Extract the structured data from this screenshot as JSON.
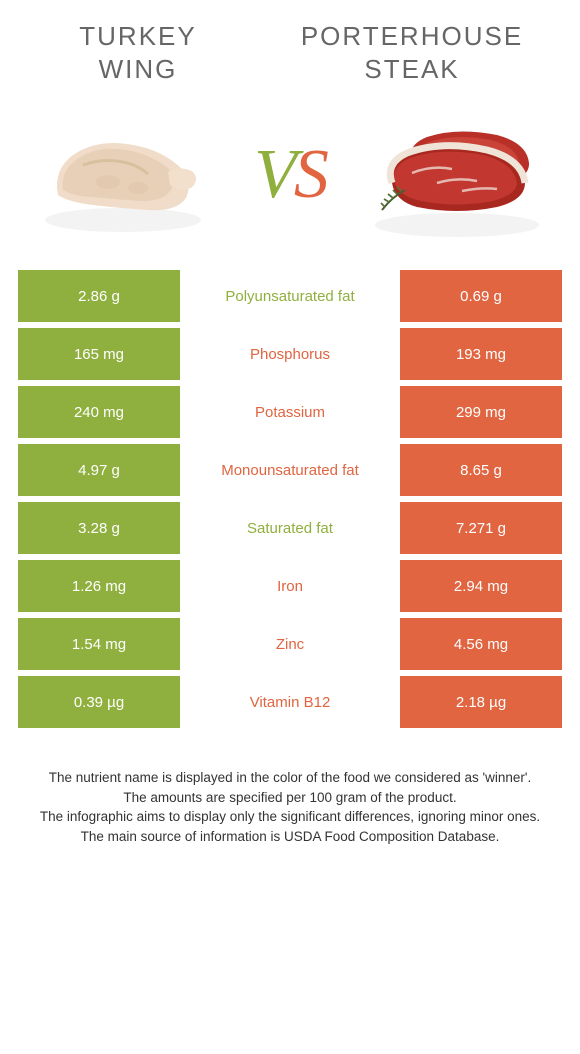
{
  "food_left": {
    "title_line1": "TURKEY",
    "title_line2": "WING",
    "color": "#8fb03e"
  },
  "food_right": {
    "title_line1": "PORTERHOUSE",
    "title_line2": "STEAK",
    "color": "#e06540"
  },
  "rows": [
    {
      "left": "2.86 g",
      "label": "Polyunsaturated fat",
      "right": "0.69 g",
      "winner": "left"
    },
    {
      "left": "165 mg",
      "label": "Phosphorus",
      "right": "193 mg",
      "winner": "right"
    },
    {
      "left": "240 mg",
      "label": "Potassium",
      "right": "299 mg",
      "winner": "right"
    },
    {
      "left": "4.97 g",
      "label": "Monounsaturated fat",
      "right": "8.65 g",
      "winner": "right"
    },
    {
      "left": "3.28 g",
      "label": "Saturated fat",
      "right": "7.271 g",
      "winner": "left"
    },
    {
      "left": "1.26 mg",
      "label": "Iron",
      "right": "2.94 mg",
      "winner": "right"
    },
    {
      "left": "1.54 mg",
      "label": "Zinc",
      "right": "4.56 mg",
      "winner": "right"
    },
    {
      "left": "0.39 µg",
      "label": "Vitamin B12",
      "right": "2.18 µg",
      "winner": "right"
    }
  ],
  "footer": {
    "line1": "The nutrient name is displayed in the color of the food we considered as 'winner'.",
    "line2": "The amounts are specified per 100 gram of the product.",
    "line3": "The infographic aims to display only the significant differences, ignoring minor ones.",
    "line4": "The main source of information is USDA Food Composition Database."
  }
}
